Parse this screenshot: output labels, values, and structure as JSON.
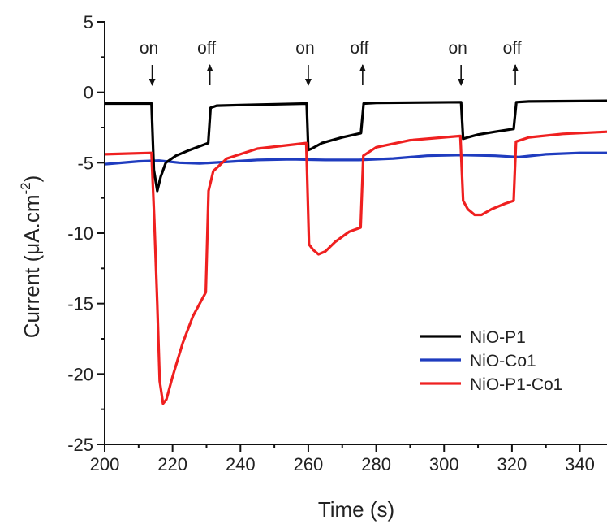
{
  "chart_data": {
    "type": "line",
    "xlabel": "Time (s)",
    "ylabel_main": "Current (",
    "ylabel_mu": "μ",
    "ylabel_unit": "A.cm",
    "ylabel_sup": "-2",
    "ylabel_close": ")",
    "xlim": [
      200,
      348
    ],
    "ylim": [
      -25,
      5
    ],
    "x_ticks": [
      200,
      220,
      240,
      260,
      280,
      300,
      320,
      340
    ],
    "y_ticks": [
      5,
      0,
      -5,
      -10,
      -15,
      -20,
      -25
    ],
    "legend_position": "bottom-right",
    "annotations": [
      {
        "text": "on",
        "x": 214,
        "direction": "down"
      },
      {
        "text": "off",
        "x": 231,
        "direction": "up"
      },
      {
        "text": "on",
        "x": 260,
        "direction": "down"
      },
      {
        "text": "off",
        "x": 276,
        "direction": "up"
      },
      {
        "text": "on",
        "x": 305,
        "direction": "down"
      },
      {
        "text": "off",
        "x": 321,
        "direction": "up"
      }
    ],
    "series": [
      {
        "name": "NiO-P1",
        "color": "#000000",
        "points": [
          [
            200,
            -0.8
          ],
          [
            213.8,
            -0.8
          ],
          [
            214.5,
            -5.5
          ],
          [
            215.5,
            -7.0
          ],
          [
            216.5,
            -6.0
          ],
          [
            218,
            -5.0
          ],
          [
            221,
            -4.5
          ],
          [
            225,
            -4.1
          ],
          [
            230.5,
            -3.6
          ],
          [
            231.2,
            -1.1
          ],
          [
            233,
            -0.95
          ],
          [
            240,
            -0.9
          ],
          [
            259.5,
            -0.8
          ],
          [
            260,
            -4.1
          ],
          [
            261,
            -4.0
          ],
          [
            264,
            -3.6
          ],
          [
            270,
            -3.2
          ],
          [
            275.5,
            -2.9
          ],
          [
            276.3,
            -0.8
          ],
          [
            280,
            -0.75
          ],
          [
            305,
            -0.7
          ],
          [
            305.6,
            -3.3
          ],
          [
            307,
            -3.2
          ],
          [
            310,
            -3.0
          ],
          [
            315,
            -2.8
          ],
          [
            320.5,
            -2.6
          ],
          [
            321.3,
            -0.7
          ],
          [
            325,
            -0.65
          ],
          [
            348,
            -0.6
          ]
        ]
      },
      {
        "name": "NiO-Co1",
        "color": "#1f3cbf",
        "points": [
          [
            200,
            -5.1
          ],
          [
            210,
            -4.9
          ],
          [
            216,
            -4.85
          ],
          [
            222,
            -5.0
          ],
          [
            228,
            -5.05
          ],
          [
            235,
            -4.95
          ],
          [
            245,
            -4.8
          ],
          [
            255,
            -4.75
          ],
          [
            265,
            -4.8
          ],
          [
            275,
            -4.8
          ],
          [
            285,
            -4.7
          ],
          [
            295,
            -4.5
          ],
          [
            305,
            -4.45
          ],
          [
            315,
            -4.5
          ],
          [
            322,
            -4.6
          ],
          [
            330,
            -4.4
          ],
          [
            340,
            -4.3
          ],
          [
            348,
            -4.3
          ]
        ]
      },
      {
        "name": "NiO-P1-Co1",
        "color": "#ef2020",
        "points": [
          [
            200,
            -4.4
          ],
          [
            213.8,
            -4.3
          ],
          [
            214.6,
            -9.0
          ],
          [
            215.5,
            -15.0
          ],
          [
            216.2,
            -20.5
          ],
          [
            217.2,
            -22.1
          ],
          [
            218.2,
            -21.8
          ],
          [
            220,
            -20.2
          ],
          [
            223,
            -17.8
          ],
          [
            226,
            -15.9
          ],
          [
            229.8,
            -14.2
          ],
          [
            230.6,
            -7.0
          ],
          [
            232,
            -5.6
          ],
          [
            236,
            -4.7
          ],
          [
            245,
            -4.0
          ],
          [
            259.4,
            -3.6
          ],
          [
            260.2,
            -10.8
          ],
          [
            261.5,
            -11.2
          ],
          [
            263,
            -11.5
          ],
          [
            265,
            -11.3
          ],
          [
            268,
            -10.6
          ],
          [
            272,
            -9.9
          ],
          [
            275.4,
            -9.6
          ],
          [
            276.2,
            -4.5
          ],
          [
            280,
            -3.9
          ],
          [
            290,
            -3.4
          ],
          [
            304.8,
            -3.1
          ],
          [
            305.6,
            -7.7
          ],
          [
            307,
            -8.3
          ],
          [
            309,
            -8.7
          ],
          [
            311,
            -8.7
          ],
          [
            314,
            -8.3
          ],
          [
            318,
            -7.9
          ],
          [
            320.5,
            -7.7
          ],
          [
            321.2,
            -3.5
          ],
          [
            325,
            -3.2
          ],
          [
            335,
            -2.95
          ],
          [
            348,
            -2.8
          ]
        ]
      }
    ]
  }
}
